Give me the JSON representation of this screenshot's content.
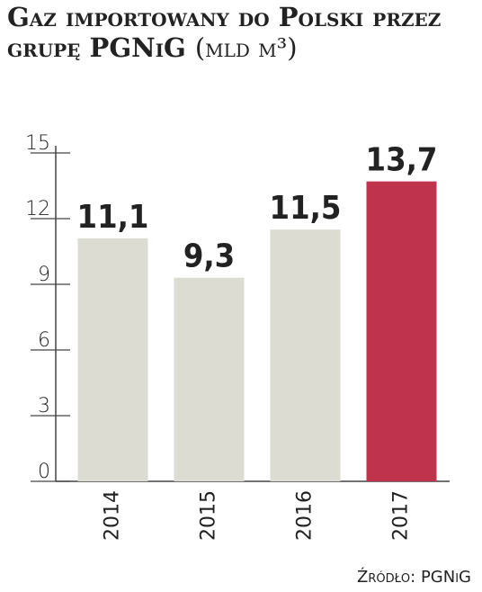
{
  "chart_data": {
    "type": "bar",
    "title": "Gaz importowany do Polski przez grupę PGNiG",
    "unit": "(mld m³)",
    "categories": [
      "2014",
      "2015",
      "2016",
      "2017"
    ],
    "values": [
      11.1,
      9.3,
      11.5,
      13.7
    ],
    "value_labels": [
      "11,1",
      "9,3",
      "11,5",
      "13,7"
    ],
    "colors": [
      "#dcdcd2",
      "#dcdcd2",
      "#dcdcd2",
      "#c0334d"
    ],
    "ylim": [
      0,
      15
    ],
    "yticks": [
      0,
      3,
      6,
      9,
      12,
      15
    ],
    "source": "Źródło: PGNiG"
  }
}
